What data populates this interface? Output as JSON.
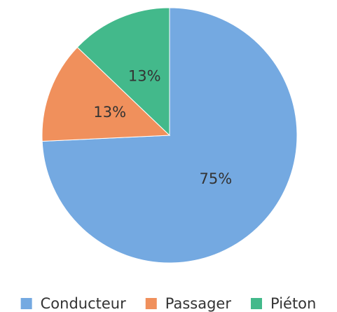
{
  "chart_data": {
    "type": "pie",
    "categories": [
      "Conducteur",
      "Passager",
      "Piéton"
    ],
    "values": [
      75,
      13,
      13
    ],
    "value_labels": [
      "75%",
      "13%",
      "13%"
    ],
    "colors": [
      "#74a9e1",
      "#f0905c",
      "#43b98b"
    ],
    "legend": "bottom"
  }
}
